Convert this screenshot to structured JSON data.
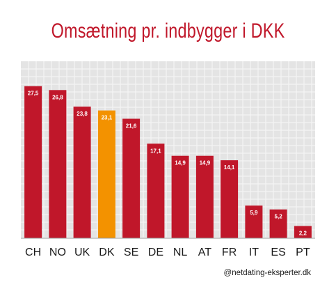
{
  "colors": {
    "title": "#c0172a",
    "bar": "#c0172a",
    "highlight": "#f39200",
    "grid_background": "#e4e4e4",
    "grid_line": "#f7f7f7"
  },
  "chart_data": {
    "type": "bar",
    "title": "Omsætning pr. indbygger i DKK",
    "categories": [
      "CH",
      "NO",
      "UK",
      "DK",
      "SE",
      "DE",
      "NL",
      "AT",
      "FR",
      "IT",
      "ES",
      "PT"
    ],
    "values": [
      27.5,
      26.8,
      23.8,
      23.1,
      21.6,
      17.1,
      14.9,
      14.9,
      14.1,
      5.9,
      5.2,
      2.2
    ],
    "value_labels": [
      "27,5",
      "26,8",
      "23,8",
      "23,1",
      "21,6",
      "17,1",
      "14,9",
      "14,9",
      "14,1",
      "5,9",
      "5,2",
      "2,2"
    ],
    "highlight_category": "DK",
    "ylim": [
      0,
      32
    ],
    "grid": true,
    "legend": "none"
  },
  "credit": "@netdating-eksperter.dk"
}
